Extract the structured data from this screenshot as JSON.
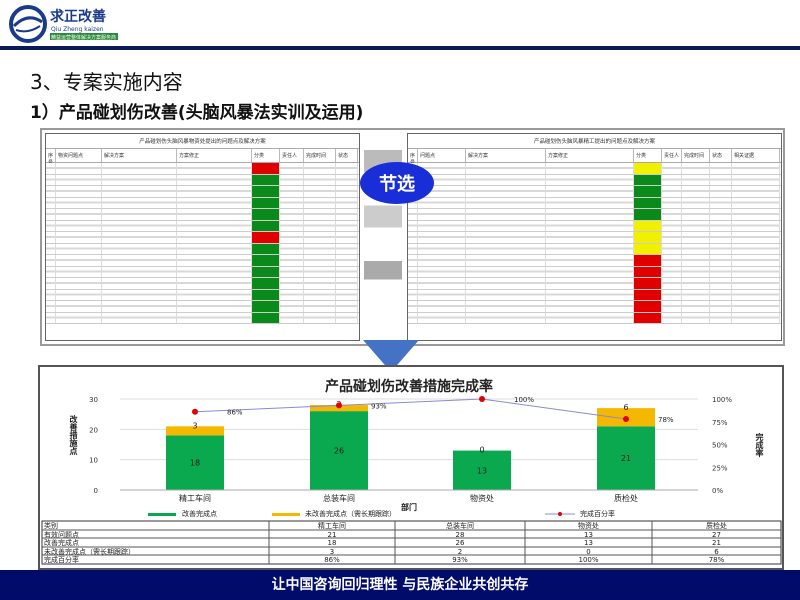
{
  "logo": {
    "name_cn": "求正改善",
    "name_en": "Qiu Zheng kaizen",
    "tagline": "精益运营整体解决方案服务商"
  },
  "heading": "3、专案实施内容",
  "subheading": "1）产品碰划伤改善(头脑风暴法实训及运用)",
  "screenshots": {
    "left_title": "产品碰划伤头脑风暴物资处提出的问题点及解决方案",
    "left_headers": [
      "序号",
      "物资问题点",
      "解决方案",
      "方案修正",
      "分类",
      "责任人",
      "完成时间",
      "状态"
    ],
    "right_title": "产品碰划伤头脑风暴精工提出的问题点及解决方案",
    "right_headers": [
      "序号",
      "问题点",
      "解决方案",
      "方案修正",
      "分类",
      "责任人",
      "完成时间",
      "状态",
      "相关证据"
    ],
    "left_status_colors": [
      "#e00000",
      "#0a8a1a",
      "#0a8a1a",
      "#0a8a1a",
      "#0a8a1a",
      "#0a8a1a",
      "#e00000",
      "#0a8a1a",
      "#0a8a1a",
      "#0a8a1a",
      "#0a8a1a",
      "#0a8a1a",
      "#0a8a1a",
      "#0a8a1a"
    ],
    "right_status_colors": [
      "#f0f000",
      "#0a8a1a",
      "#0a8a1a",
      "#0a8a1a",
      "#0a8a1a",
      "#f0f000",
      "#f0f000",
      "#f0f000",
      "#e00000",
      "#e00000",
      "#e00000",
      "#e00000",
      "#e00000",
      "#e00000"
    ],
    "badge": "节选"
  },
  "chart_data": {
    "type": "bar",
    "stacked": true,
    "title": "产品碰划伤改善措施完成率",
    "xlabel": "部门",
    "ylabel": "改善措施点",
    "y2label": "完成率",
    "categories": [
      "精工车间",
      "总装车间",
      "物资处",
      "质检处"
    ],
    "ylim": [
      0,
      30
    ],
    "yticks": [
      0,
      10,
      20,
      30
    ],
    "y2lim": [
      0,
      100
    ],
    "y2ticks": [
      "0%",
      "25%",
      "50%",
      "75%",
      "100%"
    ],
    "series": [
      {
        "name": "改善完成点",
        "type": "bar",
        "color": "#0aa84f",
        "values": [
          18,
          26,
          13,
          21
        ]
      },
      {
        "name": "未改善完成点（需长期跟踪）",
        "type": "bar",
        "color": "#f5b800",
        "values": [
          3,
          2,
          0,
          6
        ]
      },
      {
        "name": "完成百分率",
        "type": "line",
        "color": "#8a8ad8",
        "marker": "#e00000",
        "values": [
          86,
          93,
          100,
          78
        ],
        "labels": [
          "86%",
          "93%",
          "100%",
          "78%"
        ]
      }
    ],
    "legend": "bottom",
    "grid": true,
    "table": {
      "header": [
        "类别",
        "精工车间",
        "总装车间",
        "物资处",
        "质检处"
      ],
      "rows": [
        [
          "有效问题点",
          "21",
          "28",
          "13",
          "27"
        ],
        [
          "改善完成点",
          "18",
          "26",
          "13",
          "21"
        ],
        [
          "未改善完成点（需长期跟踪）",
          "3",
          "2",
          "0",
          "6"
        ],
        [
          "完成百分率",
          "86%",
          "93%",
          "100%",
          "78%"
        ]
      ]
    }
  },
  "footer": "让中国咨询回归理性  与民族企业共创共存"
}
